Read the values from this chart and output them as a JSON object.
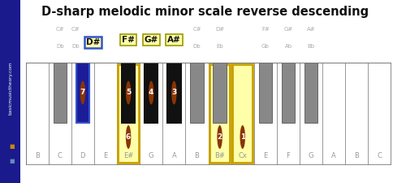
{
  "title": "D-sharp melodic minor scale reverse descending",
  "white_labels": [
    "B",
    "C",
    "D",
    "E",
    "E#",
    "G",
    "A",
    "B",
    "B#",
    "Cx",
    "E",
    "F",
    "G",
    "A",
    "B",
    "C"
  ],
  "n_white": 16,
  "black_keys": [
    {
      "x": 1.5,
      "l1": "C#",
      "l2": "Db",
      "hl": false
    },
    {
      "x": 2.5,
      "l1": "C#",
      "l2": "Db",
      "l3": "D#",
      "hl": true,
      "num": 7,
      "col": "#1c1c99",
      "border": "#3355cc"
    },
    {
      "x": 4.5,
      "l1": "F#",
      "l2": "",
      "hl": true,
      "num": 5,
      "col": "#111111",
      "border": "#111111"
    },
    {
      "x": 5.5,
      "l1": "G#",
      "l2": "",
      "hl": true,
      "num": 4,
      "col": "#111111",
      "border": "#111111"
    },
    {
      "x": 6.5,
      "l1": "A#",
      "l2": "",
      "hl": true,
      "num": 3,
      "col": "#111111",
      "border": "#111111"
    },
    {
      "x": 7.5,
      "l1": "C#",
      "l2": "Db",
      "hl": false
    },
    {
      "x": 8.5,
      "l1": "D#",
      "l2": "Eb",
      "hl": false
    },
    {
      "x": 10.5,
      "l1": "F#",
      "l2": "Gb",
      "hl": false
    },
    {
      "x": 11.5,
      "l1": "G#",
      "l2": "Ab",
      "hl": false
    },
    {
      "x": 12.5,
      "l1": "A#",
      "l2": "Bb",
      "hl": false
    }
  ],
  "wk_highlights": {
    "1": {
      "bottom_bar": "#c8860a"
    },
    "4": {
      "color": "#ffffaa",
      "border": "#c8a000",
      "num": 6
    },
    "8": {
      "color": "#ffffaa",
      "border": "#c8a000",
      "num": 2
    },
    "9": {
      "color": "#ffffaa",
      "border": "#c8a000",
      "num": 1
    }
  },
  "note_circle_color": "#8b3500",
  "sidebar_color": "#1a1a8c",
  "bg_color": "#ffffff",
  "gray_bk_color": "#888888"
}
